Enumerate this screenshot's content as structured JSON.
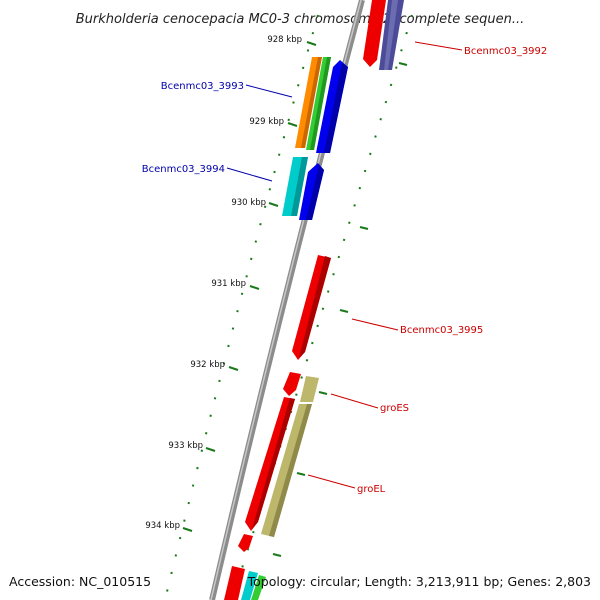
{
  "title": "Burkholderia cenocepacia MC0-3 chromosome 2, complete sequen...",
  "footer": {
    "accession": "Accession: NC_010515",
    "summary": "Topology: circular; Length: 3,213,911 bp; Genes: 2,803"
  },
  "ticks": [
    "928 kbp",
    "929 kbp",
    "930 kbp",
    "931 kbp",
    "932 kbp",
    "933 kbp",
    "934 kbp"
  ],
  "gene_labels": [
    {
      "text": "Bcenmc03_3992",
      "color": "#cc0000"
    },
    {
      "text": "Bcenmc03_3993",
      "color": "#0000aa"
    },
    {
      "text": "Bcenmc03_3994",
      "color": "#0000aa"
    },
    {
      "text": "Bcenmc03_3995",
      "color": "#cc0000"
    },
    {
      "text": "groES",
      "color": "#cc0000"
    },
    {
      "text": "groEL",
      "color": "#cc0000"
    }
  ],
  "colors": {
    "backbone": "#8c8c8c",
    "tick": "#1a7a1a",
    "red_feature": "#ee0000",
    "blue_feature": "#0000ee",
    "orange_feature": "#ff8c00",
    "green_feature": "#33cc33",
    "cyan_feature": "#00cccc",
    "khaki_feature": "#bdb76b",
    "navy_feature": "#4b4b9a"
  }
}
